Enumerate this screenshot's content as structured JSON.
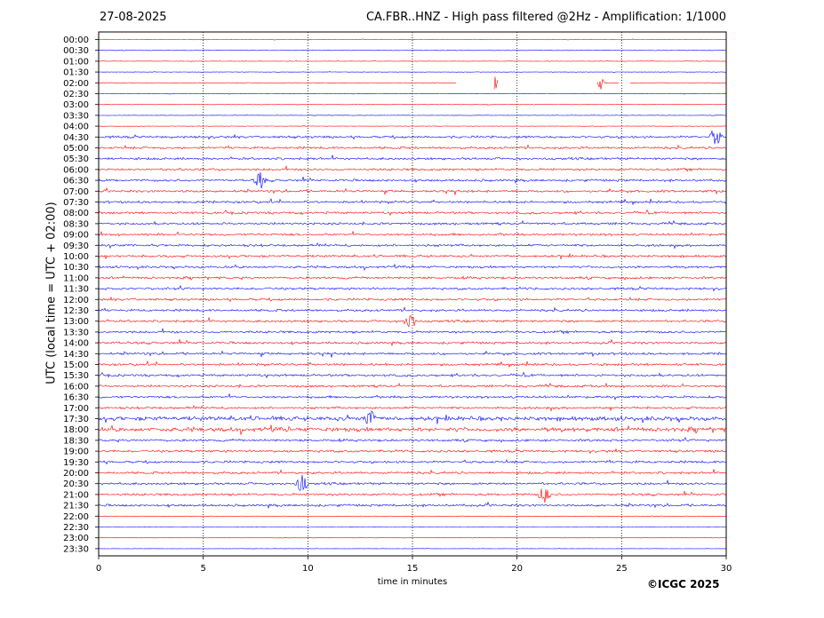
{
  "header": {
    "date": "27-08-2025",
    "title": "CA.FBR..HNZ - High pass filtered @2Hz - Amplification: 1/1000"
  },
  "footer": {
    "copyright": "©ICGC 2025"
  },
  "chart_data": {
    "type": "line",
    "title": "CA.FBR..HNZ - High pass filtered @2Hz - Amplification: 1/1000",
    "xlabel": "time in minutes",
    "ylabel": "UTC (local time = UTC + 02:00)",
    "xlim": [
      0,
      30
    ],
    "xticks": [
      0,
      5,
      10,
      15,
      20,
      25,
      30
    ],
    "vertical_gridlines": [
      5,
      10,
      15,
      20,
      25
    ],
    "grid": "dotted vertical",
    "colors": {
      "even_rows": "#ff0000",
      "odd_rows": "#0000ff"
    },
    "row_labels": [
      "00:00",
      "00:30",
      "01:00",
      "01:30",
      "02:00",
      "02:30",
      "03:00",
      "03:30",
      "04:00",
      "04:30",
      "05:00",
      "05:30",
      "06:00",
      "06:30",
      "07:00",
      "07:30",
      "08:00",
      "08:30",
      "09:00",
      "09:30",
      "10:00",
      "10:30",
      "11:00",
      "11:30",
      "12:00",
      "12:30",
      "13:00",
      "13:30",
      "14:00",
      "14:30",
      "15:00",
      "15:30",
      "16:00",
      "16:30",
      "17:00",
      "17:30",
      "18:00",
      "18:30",
      "19:00",
      "19:30",
      "20:00",
      "20:30",
      "21:00",
      "21:30",
      "22:00",
      "22:30",
      "23:00",
      "23:30"
    ],
    "notable_events": [
      {
        "row": "02:00",
        "minute": 19.0
      },
      {
        "row": "02:00",
        "minute": 23.9
      },
      {
        "row": "04:30",
        "minute": 29.5
      },
      {
        "row": "06:30",
        "minute": 7.7
      },
      {
        "row": "13:00",
        "minute": 14.9
      },
      {
        "row": "17:30",
        "minute": 13.0
      },
      {
        "row": "20:30",
        "minute": 9.7
      },
      {
        "row": "21:00",
        "minute": 21.3
      }
    ],
    "gaps": [
      {
        "row": "02:00",
        "from": 17.1,
        "to": 18.9
      },
      {
        "row": "02:00",
        "from": 19.1,
        "to": 23.8
      },
      {
        "row": "02:00",
        "from": 24.9,
        "to": 25.4
      }
    ]
  }
}
